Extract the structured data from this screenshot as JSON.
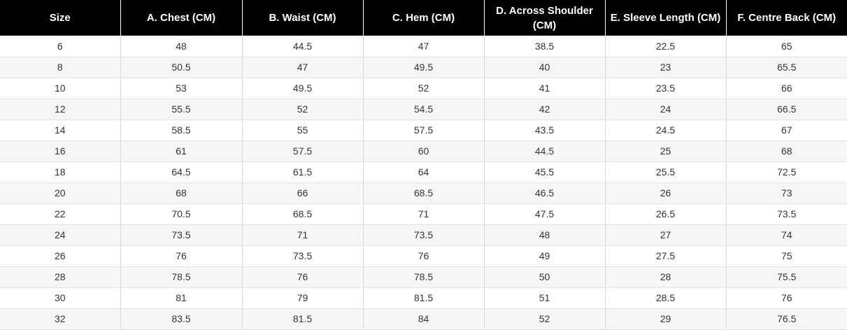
{
  "table": {
    "headers": [
      "Size",
      "A. Chest (CM)",
      "B. Waist (CM)",
      "C. Hem (CM)",
      "D. Across Shoulder (CM)",
      "E. Sleeve Length (CM)",
      "F. Centre Back (CM)"
    ],
    "rows": [
      [
        "6",
        "48",
        "44.5",
        "47",
        "38.5",
        "22.5",
        "65"
      ],
      [
        "8",
        "50.5",
        "47",
        "49.5",
        "40",
        "23",
        "65.5"
      ],
      [
        "10",
        "53",
        "49.5",
        "52",
        "41",
        "23.5",
        "66"
      ],
      [
        "12",
        "55.5",
        "52",
        "54.5",
        "42",
        "24",
        "66.5"
      ],
      [
        "14",
        "58.5",
        "55",
        "57.5",
        "43.5",
        "24.5",
        "67"
      ],
      [
        "16",
        "61",
        "57.5",
        "60",
        "44.5",
        "25",
        "68"
      ],
      [
        "18",
        "64.5",
        "61.5",
        "64",
        "45.5",
        "25.5",
        "72.5"
      ],
      [
        "20",
        "68",
        "66",
        "68.5",
        "46.5",
        "26",
        "73"
      ],
      [
        "22",
        "70.5",
        "68.5",
        "71",
        "47.5",
        "26.5",
        "73.5"
      ],
      [
        "24",
        "73.5",
        "71",
        "73.5",
        "48",
        "27",
        "74"
      ],
      [
        "26",
        "76",
        "73.5",
        "76",
        "49",
        "27.5",
        "75"
      ],
      [
        "28",
        "78.5",
        "76",
        "78.5",
        "50",
        "28",
        "75.5"
      ],
      [
        "30",
        "81",
        "79",
        "81.5",
        "51",
        "28.5",
        "76"
      ],
      [
        "32",
        "83.5",
        "81.5",
        "84",
        "52",
        "29",
        "76.5"
      ]
    ]
  }
}
